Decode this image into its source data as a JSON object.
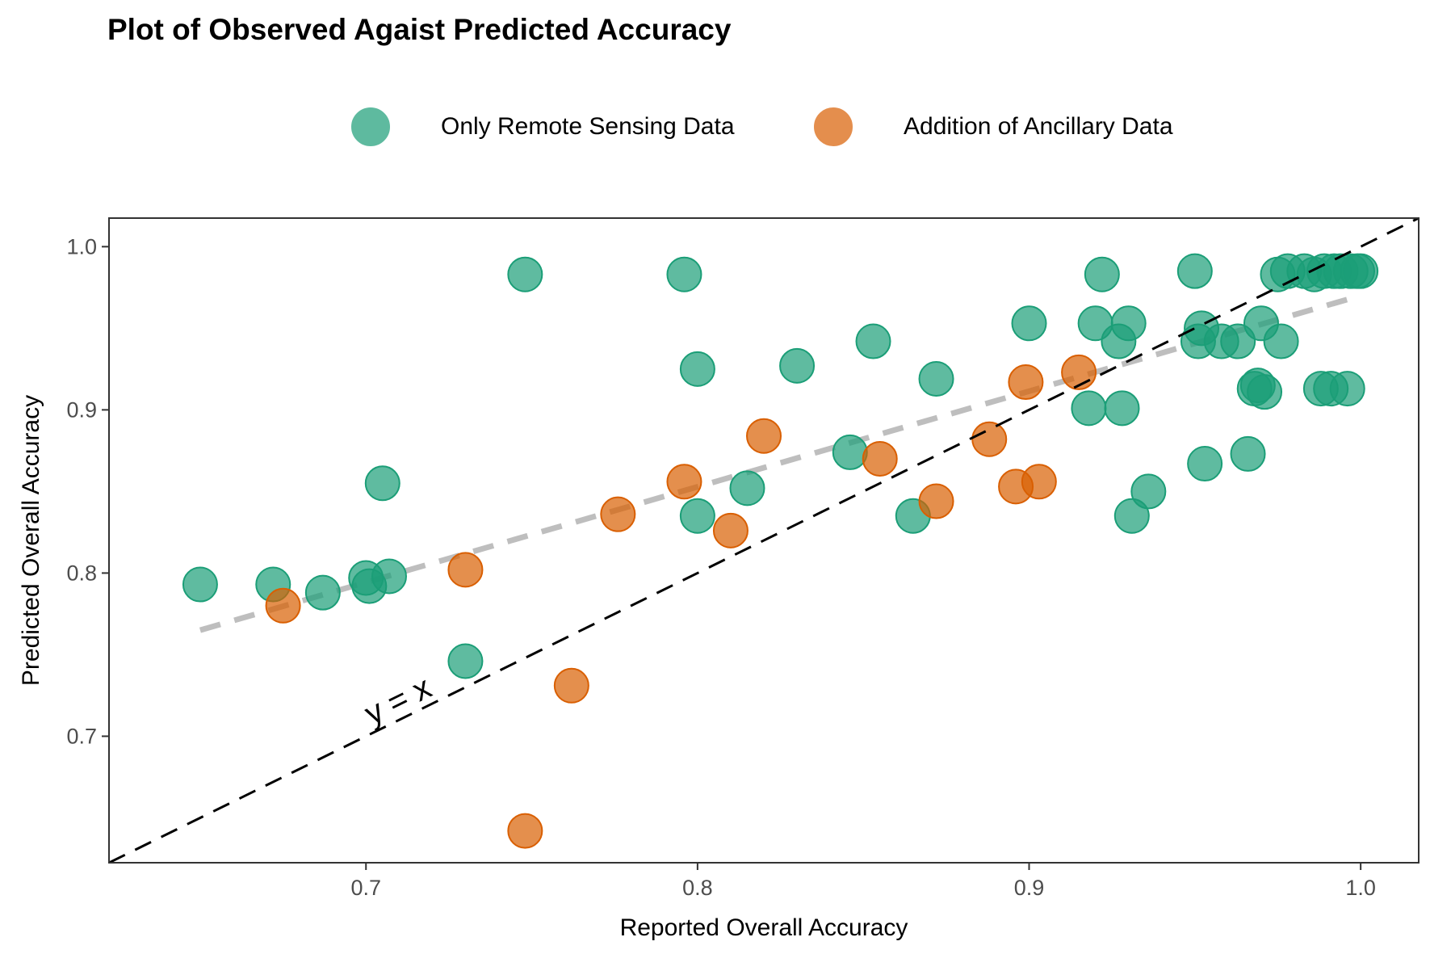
{
  "chart_data": {
    "type": "scatter",
    "title": "Plot of Observed Agaist Predicted Accuracy",
    "xlabel": "Reported Overall Accuracy",
    "ylabel": "Predicted Overall Accuracy",
    "xlim": [
      0.6225,
      1.0175
    ],
    "ylim": [
      0.6225,
      1.0175
    ],
    "x_ticks": [
      0.7,
      0.8,
      0.9,
      1.0
    ],
    "x_tick_labels": [
      "0.7",
      "0.8",
      "0.9",
      "1.0"
    ],
    "y_ticks": [
      0.7,
      0.8,
      0.9,
      1.0
    ],
    "y_tick_labels": [
      "0.7",
      "0.8",
      "0.9",
      "1.0"
    ],
    "grid": false,
    "legend_position": "top",
    "reference_line": {
      "label": "y = x",
      "slope": 1,
      "intercept": 0,
      "style": "dashed",
      "color": "#000000"
    },
    "trend_line": {
      "x": [
        0.65,
        1.0
      ],
      "y": [
        0.765,
        0.97
      ],
      "style": "dashed",
      "color": "#bebebe"
    },
    "series": [
      {
        "name": "Only Remote Sensing Data",
        "color": "#1b9e77",
        "points": [
          [
            0.65,
            0.793
          ],
          [
            0.672,
            0.793
          ],
          [
            0.687,
            0.788
          ],
          [
            0.7,
            0.797
          ],
          [
            0.701,
            0.792
          ],
          [
            0.707,
            0.798
          ],
          [
            0.705,
            0.855
          ],
          [
            0.73,
            0.746
          ],
          [
            0.748,
            0.983
          ],
          [
            0.796,
            0.983
          ],
          [
            0.8,
            0.925
          ],
          [
            0.8,
            0.835
          ],
          [
            0.815,
            0.852
          ],
          [
            0.83,
            0.927
          ],
          [
            0.846,
            0.874
          ],
          [
            0.853,
            0.942
          ],
          [
            0.865,
            0.835
          ],
          [
            0.872,
            0.919
          ],
          [
            0.9,
            0.953
          ],
          [
            0.918,
            0.901
          ],
          [
            0.92,
            0.953
          ],
          [
            0.922,
            0.983
          ],
          [
            0.927,
            0.942
          ],
          [
            0.928,
            0.901
          ],
          [
            0.93,
            0.953
          ],
          [
            0.931,
            0.835
          ],
          [
            0.936,
            0.85
          ],
          [
            0.95,
            0.985
          ],
          [
            0.951,
            0.942
          ],
          [
            0.952,
            0.95
          ],
          [
            0.953,
            0.867
          ],
          [
            0.958,
            0.942
          ],
          [
            0.963,
            0.942
          ],
          [
            0.966,
            0.873
          ],
          [
            0.968,
            0.913
          ],
          [
            0.969,
            0.915
          ],
          [
            0.97,
            0.953
          ],
          [
            0.971,
            0.911
          ],
          [
            0.975,
            0.983
          ],
          [
            0.976,
            0.942
          ],
          [
            0.978,
            0.985
          ],
          [
            0.983,
            0.985
          ],
          [
            0.986,
            0.983
          ],
          [
            0.988,
            0.913
          ],
          [
            0.989,
            0.985
          ],
          [
            0.991,
            0.913
          ],
          [
            0.992,
            0.985
          ],
          [
            0.994,
            0.985
          ],
          [
            0.996,
            0.913
          ],
          [
            0.997,
            0.985
          ],
          [
            0.999,
            0.985
          ],
          [
            1.0,
            0.985
          ]
        ]
      },
      {
        "name": "Addition of Ancillary Data",
        "color": "#d95f02",
        "points": [
          [
            0.675,
            0.78
          ],
          [
            0.73,
            0.802
          ],
          [
            0.748,
            0.642
          ],
          [
            0.762,
            0.731
          ],
          [
            0.776,
            0.836
          ],
          [
            0.796,
            0.856
          ],
          [
            0.81,
            0.826
          ],
          [
            0.82,
            0.884
          ],
          [
            0.855,
            0.87
          ],
          [
            0.872,
            0.844
          ],
          [
            0.888,
            0.882
          ],
          [
            0.896,
            0.853
          ],
          [
            0.899,
            0.917
          ],
          [
            0.903,
            0.856
          ],
          [
            0.915,
            0.923
          ]
        ]
      }
    ]
  }
}
